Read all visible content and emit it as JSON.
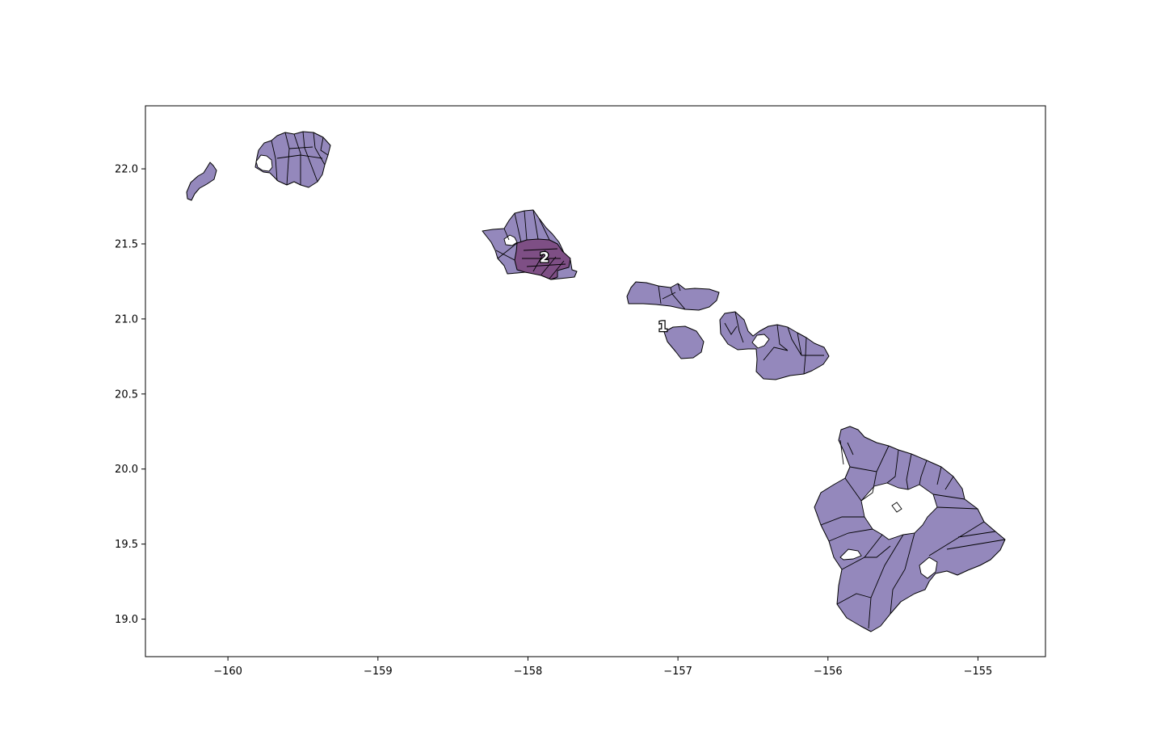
{
  "chart_data": {
    "type": "choropleth",
    "xlim": [
      -160.55,
      -154.55
    ],
    "ylim": [
      18.75,
      22.42
    ],
    "x_ticks": [
      -160,
      -159,
      -158,
      -157,
      -156,
      -155
    ],
    "x_tick_labels": [
      "−160",
      "−159",
      "−158",
      "−157",
      "−156",
      "−155"
    ],
    "y_ticks": [
      19.0,
      19.5,
      20.0,
      20.5,
      21.0,
      21.5,
      22.0
    ],
    "y_tick_labels": [
      "19.0",
      "19.5",
      "20.0",
      "20.5",
      "21.0",
      "21.5",
      "22.0"
    ],
    "grid": false,
    "districts": [
      {
        "label": "1",
        "color": "#9488bc",
        "label_position": [
          -157.1,
          20.95
        ]
      },
      {
        "label": "2",
        "color": "#7e4f85",
        "label_position": [
          -157.89,
          21.41
        ]
      }
    ],
    "colors": {
      "district_1": "#9488bc",
      "district_2": "#7e4f85",
      "border": "#000000"
    }
  }
}
